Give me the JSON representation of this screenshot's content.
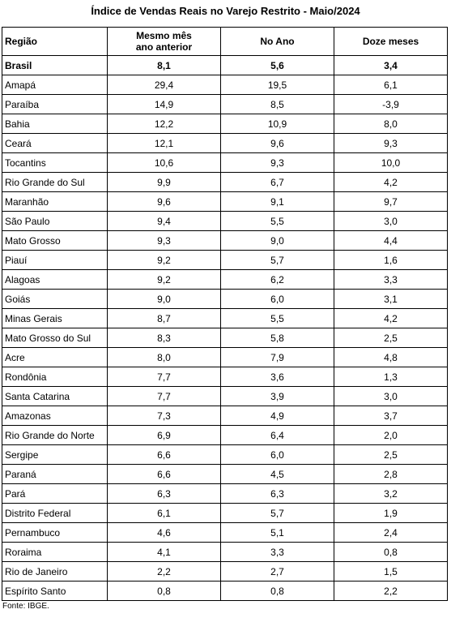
{
  "title": "Índice de Vendas Reais no Varejo Restrito - Maio/2024",
  "table": {
    "header": [
      "Região",
      "Mesmo mês\nano anterior",
      "No Ano",
      "Doze meses"
    ],
    "rows": [
      [
        "Brasil",
        "8,1",
        "5,6",
        "3,4"
      ],
      [
        "Amapá",
        "29,4",
        "19,5",
        "6,1"
      ],
      [
        "Paraíba",
        "14,9",
        "8,5",
        "-3,9"
      ],
      [
        "Bahia",
        "12,2",
        "10,9",
        "8,0"
      ],
      [
        "Ceará",
        "12,1",
        "9,6",
        "9,3"
      ],
      [
        "Tocantins",
        "10,6",
        "9,3",
        "10,0"
      ],
      [
        "Rio Grande do Sul",
        "9,9",
        "6,7",
        "4,2"
      ],
      [
        "Maranhão",
        "9,6",
        "9,1",
        "9,7"
      ],
      [
        "São Paulo",
        "9,4",
        "5,5",
        "3,0"
      ],
      [
        "Mato Grosso",
        "9,3",
        "9,0",
        "4,4"
      ],
      [
        "Piauí",
        "9,2",
        "5,7",
        "1,6"
      ],
      [
        "Alagoas",
        "9,2",
        "6,2",
        "3,3"
      ],
      [
        "Goiás",
        "9,0",
        "6,0",
        "3,1"
      ],
      [
        "Minas Gerais",
        "8,7",
        "5,5",
        "4,2"
      ],
      [
        "Mato Grosso do Sul",
        "8,3",
        "5,8",
        "2,5"
      ],
      [
        "Acre",
        "8,0",
        "7,9",
        "4,8"
      ],
      [
        "Rondônia",
        "7,7",
        "3,6",
        "1,3"
      ],
      [
        "Santa Catarina",
        "7,7",
        "3,9",
        "3,0"
      ],
      [
        "Amazonas",
        "7,3",
        "4,9",
        "3,7"
      ],
      [
        "Rio Grande do Norte",
        "6,9",
        "6,4",
        "2,0"
      ],
      [
        "Sergipe",
        "6,6",
        "6,0",
        "2,5"
      ],
      [
        "Paraná",
        "6,6",
        "4,5",
        "2,8"
      ],
      [
        "Pará",
        "6,3",
        "6,3",
        "3,2"
      ],
      [
        "Distrito Federal",
        "6,1",
        "5,7",
        "1,9"
      ],
      [
        "Pernambuco",
        "4,6",
        "5,1",
        "2,4"
      ],
      [
        "Roraima",
        "4,1",
        "3,3",
        "0,8"
      ],
      [
        "Rio de Janeiro",
        "2,2",
        "2,7",
        "1,5"
      ],
      [
        "Espírito Santo",
        "0,8",
        "0,8",
        "2,2"
      ]
    ]
  },
  "footnote": "Fonte: IBGE."
}
